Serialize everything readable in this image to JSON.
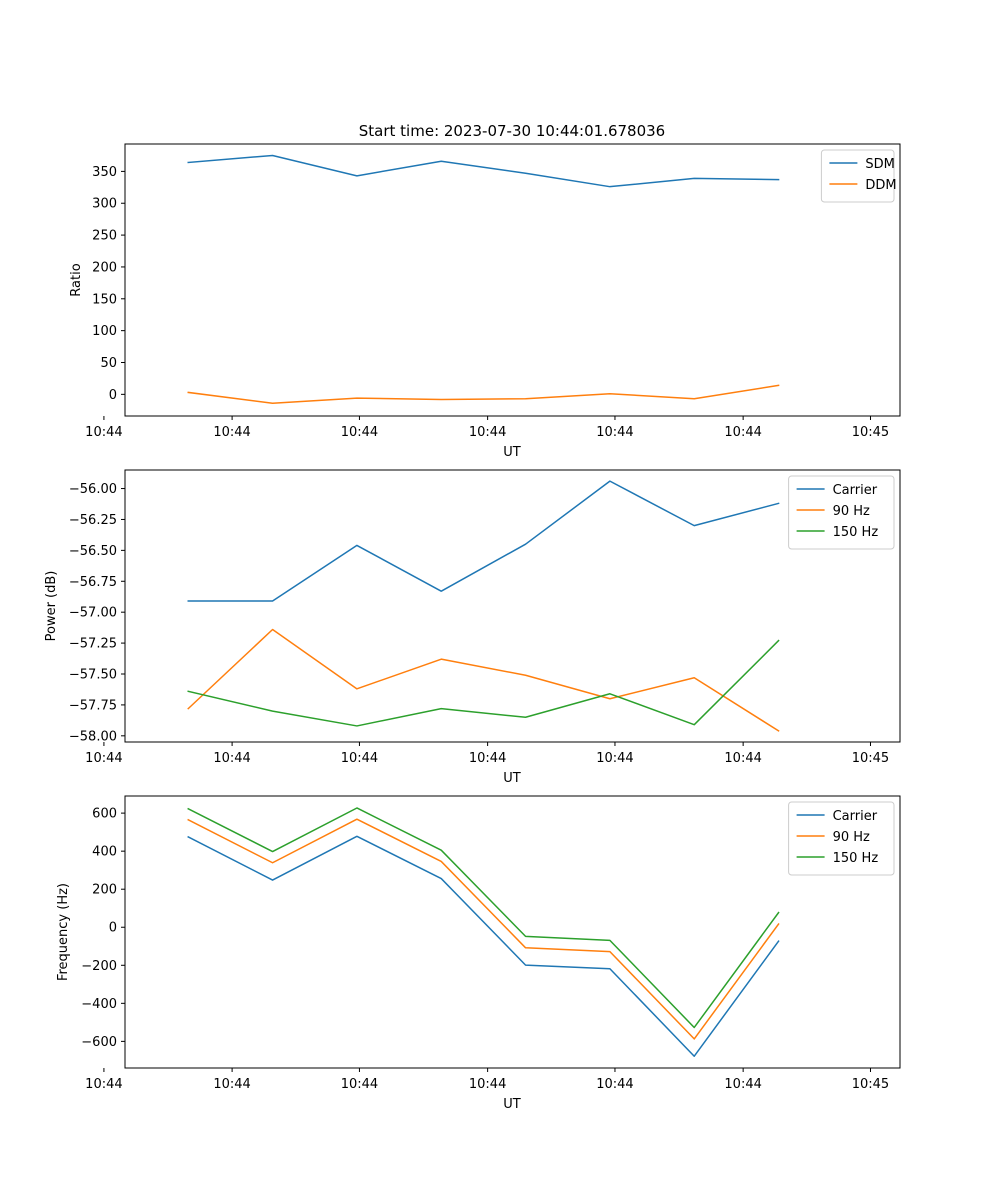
{
  "figure": {
    "title": "Start time: 2023-07-30 10:44:01.678036"
  },
  "colors": {
    "blue": "#1f77b4",
    "orange": "#ff7f0e",
    "green": "#2ca02c"
  },
  "chart_data": [
    {
      "type": "line",
      "title": "Start time: 2023-07-30 10:44:01.678036",
      "xlabel": "UT",
      "ylabel": "Ratio",
      "x": [
        1,
        2,
        3,
        4,
        5,
        6,
        7,
        8
      ],
      "xlim": [
        0.25,
        9.44
      ],
      "xticks": [
        {
          "v": 0.0,
          "label": "10:44"
        },
        {
          "v": 1.52,
          "label": "10:44"
        },
        {
          "v": 3.03,
          "label": "10:44"
        },
        {
          "v": 4.55,
          "label": "10:44"
        },
        {
          "v": 6.06,
          "label": "10:44"
        },
        {
          "v": 7.58,
          "label": "10:44"
        },
        {
          "v": 9.09,
          "label": "10:45"
        }
      ],
      "ylim": [
        -34,
        393
      ],
      "yticks": [
        0,
        50,
        100,
        150,
        200,
        250,
        300,
        350
      ],
      "legend_position": "upper-right",
      "series": [
        {
          "name": "SDM",
          "color": "#1f77b4",
          "values": [
            364,
            375,
            343,
            366,
            347,
            326,
            339,
            337
          ]
        },
        {
          "name": "DDM",
          "color": "#ff7f0e",
          "values": [
            3,
            -14,
            -6,
            -8,
            -7,
            1,
            -7,
            14
          ]
        }
      ]
    },
    {
      "type": "line",
      "title": "",
      "xlabel": "UT",
      "ylabel": "Power (dB)",
      "x": [
        1,
        2,
        3,
        4,
        5,
        6,
        7,
        8
      ],
      "xlim": [
        0.25,
        9.44
      ],
      "xticks": [
        {
          "v": 0.0,
          "label": "10:44"
        },
        {
          "v": 1.52,
          "label": "10:44"
        },
        {
          "v": 3.03,
          "label": "10:44"
        },
        {
          "v": 4.55,
          "label": "10:44"
        },
        {
          "v": 6.06,
          "label": "10:44"
        },
        {
          "v": 7.58,
          "label": "10:44"
        },
        {
          "v": 9.09,
          "label": "10:45"
        }
      ],
      "ylim": [
        -58.05,
        -55.85
      ],
      "yticks": [
        -58.0,
        -57.75,
        -57.5,
        -57.25,
        -57.0,
        -56.75,
        -56.5,
        -56.25,
        -56.0
      ],
      "tick_decimals": 2,
      "legend_position": "upper-right",
      "series": [
        {
          "name": "Carrier",
          "color": "#1f77b4",
          "values": [
            -56.91,
            -56.91,
            -56.46,
            -56.83,
            -56.45,
            -55.94,
            -56.3,
            -56.12
          ]
        },
        {
          "name": "90 Hz",
          "color": "#ff7f0e",
          "values": [
            -57.78,
            -57.14,
            -57.62,
            -57.38,
            -57.51,
            -57.7,
            -57.53,
            -57.96
          ]
        },
        {
          "name": "150 Hz",
          "color": "#2ca02c",
          "values": [
            -57.64,
            -57.8,
            -57.92,
            -57.78,
            -57.85,
            -57.66,
            -57.91,
            -57.23
          ]
        }
      ]
    },
    {
      "type": "line",
      "title": "",
      "xlabel": "UT",
      "ylabel": "Frequency (Hz)",
      "x": [
        1,
        2,
        3,
        4,
        5,
        6,
        7,
        8
      ],
      "xlim": [
        0.25,
        9.44
      ],
      "xticks": [
        {
          "v": 0.0,
          "label": "10:44"
        },
        {
          "v": 1.52,
          "label": "10:44"
        },
        {
          "v": 3.03,
          "label": "10:44"
        },
        {
          "v": 4.55,
          "label": "10:44"
        },
        {
          "v": 6.06,
          "label": "10:44"
        },
        {
          "v": 7.58,
          "label": "10:44"
        },
        {
          "v": 9.09,
          "label": "10:45"
        }
      ],
      "ylim": [
        -740,
        690
      ],
      "yticks": [
        -600,
        -400,
        -200,
        0,
        200,
        400,
        600
      ],
      "legend_position": "upper-right",
      "series": [
        {
          "name": "Carrier",
          "color": "#1f77b4",
          "values": [
            475,
            248,
            478,
            256,
            -199,
            -218,
            -678,
            -73
          ]
        },
        {
          "name": "90 Hz",
          "color": "#ff7f0e",
          "values": [
            565,
            339,
            568,
            346,
            -108,
            -128,
            -587,
            17
          ]
        },
        {
          "name": "150 Hz",
          "color": "#2ca02c",
          "values": [
            623,
            398,
            627,
            405,
            -48,
            -69,
            -527,
            77
          ]
        }
      ]
    }
  ]
}
